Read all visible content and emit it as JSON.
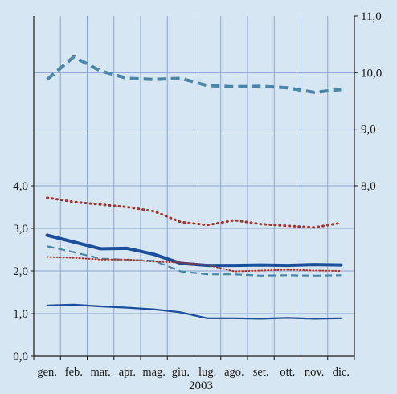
{
  "chart_data": {
    "type": "line",
    "categories": [
      "gen.",
      "feb.",
      "mar.",
      "apr.",
      "mag.",
      "giu.",
      "lug.",
      "ago.",
      "set.",
      "ott.",
      "nov.",
      "dic."
    ],
    "xlabel": "2003",
    "left_axis": {
      "ylim": [
        0,
        4
      ],
      "ticks": [
        "0,0",
        "1,0",
        "2,0",
        "3,0",
        "4,0"
      ],
      "tick_values": [
        0,
        1,
        2,
        3,
        4
      ]
    },
    "right_axis": {
      "ylim": [
        7,
        11
      ],
      "ticks": [
        "8,0",
        "9,0",
        "10,0",
        "11,0"
      ],
      "tick_values": [
        8,
        9,
        10,
        11
      ]
    },
    "grid": true,
    "legend": "none",
    "series": [
      {
        "axis": "right",
        "style": "thick-dashed",
        "color": "#4a86a6",
        "values": [
          9.88,
          10.28,
          10.03,
          9.9,
          9.88,
          9.9,
          9.77,
          9.75,
          9.76,
          9.73,
          9.65,
          9.7
        ]
      },
      {
        "axis": "left",
        "style": "dotted",
        "color": "#a8302a",
        "values": [
          3.72,
          3.62,
          3.56,
          3.5,
          3.4,
          3.15,
          3.08,
          3.19,
          3.1,
          3.06,
          3.02,
          3.13
        ]
      },
      {
        "axis": "left",
        "style": "thick-solid",
        "color": "#1c4f9b",
        "values": [
          2.84,
          2.68,
          2.52,
          2.53,
          2.39,
          2.18,
          2.13,
          2.13,
          2.14,
          2.13,
          2.15,
          2.14
        ]
      },
      {
        "axis": "left",
        "style": "dashed",
        "color": "#4a86a6",
        "values": [
          2.58,
          2.44,
          2.29,
          2.26,
          2.24,
          1.99,
          1.92,
          1.92,
          1.89,
          1.9,
          1.89,
          1.9
        ]
      },
      {
        "axis": "left",
        "style": "thin-dotted",
        "color": "#a8302a",
        "values": [
          2.33,
          2.31,
          2.27,
          2.27,
          2.22,
          2.2,
          2.14,
          1.99,
          2.01,
          2.03,
          2.01,
          2.0
        ]
      },
      {
        "axis": "left",
        "style": "solid",
        "color": "#1c4f9b",
        "values": [
          1.19,
          1.21,
          1.17,
          1.14,
          1.1,
          1.03,
          0.89,
          0.89,
          0.88,
          0.9,
          0.88,
          0.89
        ]
      }
    ]
  }
}
